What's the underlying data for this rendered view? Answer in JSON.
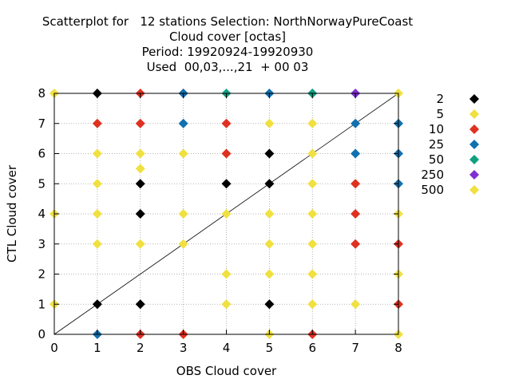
{
  "chart_data": {
    "type": "scatter",
    "title_lines": [
      "Scatterplot for   12 stations Selection: NorthNorwayPureCoast",
      "Cloud cover [octas]",
      "Period: 19920924-19920930",
      "Used  00,03,...,21  + 00 03"
    ],
    "xlabel": "OBS Cloud cover",
    "ylabel": "CTL Cloud cover",
    "xlim": [
      0,
      8
    ],
    "ylim": [
      0,
      8
    ],
    "xticks": [
      "0",
      "1",
      "2",
      "3",
      "4",
      "5",
      "6",
      "7",
      "8"
    ],
    "yticks": [
      "0",
      "1",
      "2",
      "3",
      "4",
      "5",
      "6",
      "7",
      "8"
    ],
    "grid": true,
    "diagonal": true,
    "legend_position": "right",
    "series": [
      {
        "name": "2",
        "color": "#000000",
        "points": [
          [
            1,
            8
          ],
          [
            1,
            1
          ],
          [
            2,
            5
          ],
          [
            2,
            4
          ],
          [
            2,
            1
          ],
          [
            4,
            5
          ],
          [
            5,
            6
          ],
          [
            5,
            5
          ],
          [
            5,
            1
          ]
        ]
      },
      {
        "name": "5",
        "color": "#f0e040",
        "points": [
          [
            0,
            8
          ],
          [
            0,
            4
          ],
          [
            0,
            1
          ],
          [
            1,
            6
          ],
          [
            1,
            5
          ],
          [
            1,
            4
          ],
          [
            1,
            3
          ],
          [
            2,
            6
          ],
          [
            2,
            5.5
          ],
          [
            2,
            3
          ],
          [
            3,
            6
          ],
          [
            3,
            4
          ],
          [
            3,
            3
          ],
          [
            4,
            4
          ],
          [
            4,
            2
          ],
          [
            4,
            1
          ],
          [
            5,
            7
          ],
          [
            5,
            4
          ],
          [
            5,
            3
          ],
          [
            5,
            2
          ],
          [
            6,
            7
          ],
          [
            6,
            6
          ],
          [
            6,
            5
          ],
          [
            6,
            4
          ],
          [
            6,
            3
          ],
          [
            6,
            2
          ],
          [
            6,
            1
          ],
          [
            7,
            1
          ],
          [
            8,
            8
          ],
          [
            8,
            4
          ],
          [
            8,
            2
          ],
          [
            5,
            0
          ],
          [
            8,
            0
          ]
        ]
      },
      {
        "name": "10",
        "color": "#e03020",
        "points": [
          [
            1,
            7
          ],
          [
            2,
            8
          ],
          [
            2,
            7
          ],
          [
            3,
            8
          ],
          [
            4,
            7
          ],
          [
            4,
            6
          ],
          [
            7,
            5
          ],
          [
            7,
            4
          ],
          [
            7,
            3
          ],
          [
            8,
            3
          ],
          [
            8,
            1
          ],
          [
            2,
            0
          ],
          [
            3,
            0
          ],
          [
            6,
            0
          ]
        ]
      },
      {
        "name": "25",
        "color": "#1070b0",
        "points": [
          [
            3,
            8
          ],
          [
            3,
            7
          ],
          [
            5,
            8
          ],
          [
            6,
            8
          ],
          [
            7,
            7
          ],
          [
            7,
            6
          ],
          [
            8,
            7
          ],
          [
            8,
            6
          ],
          [
            8,
            5
          ],
          [
            1,
            0
          ]
        ]
      },
      {
        "name": "50",
        "color": "#10a080",
        "points": [
          [
            4,
            8
          ],
          [
            6,
            8
          ]
        ]
      },
      {
        "name": "250",
        "color": "#8030d0",
        "points": [
          [
            7,
            8
          ]
        ]
      },
      {
        "name": "500",
        "color": "#f0e040",
        "points": []
      }
    ]
  }
}
